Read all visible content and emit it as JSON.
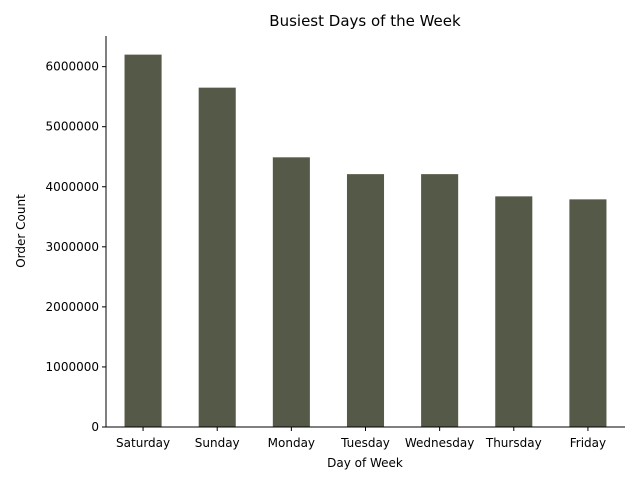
{
  "chart_data": {
    "type": "bar",
    "title": "Busiest Days of the Week",
    "xlabel": "Day of Week",
    "ylabel": "Order Count",
    "categories": [
      "Saturday",
      "Sunday",
      "Monday",
      "Tuesday",
      "Wednesday",
      "Thursday",
      "Friday"
    ],
    "values": [
      6200000,
      5650000,
      4490000,
      4210000,
      4210000,
      3840000,
      3790000
    ],
    "ylim": [
      0,
      6510000
    ],
    "yticks": [
      0,
      1000000,
      2000000,
      3000000,
      4000000,
      5000000,
      6000000
    ],
    "ytick_labels": [
      "0",
      "1000000",
      "2000000",
      "3000000",
      "4000000",
      "5000000",
      "6000000"
    ],
    "bar_color": "#545a47",
    "grid": false,
    "legend": "none"
  }
}
